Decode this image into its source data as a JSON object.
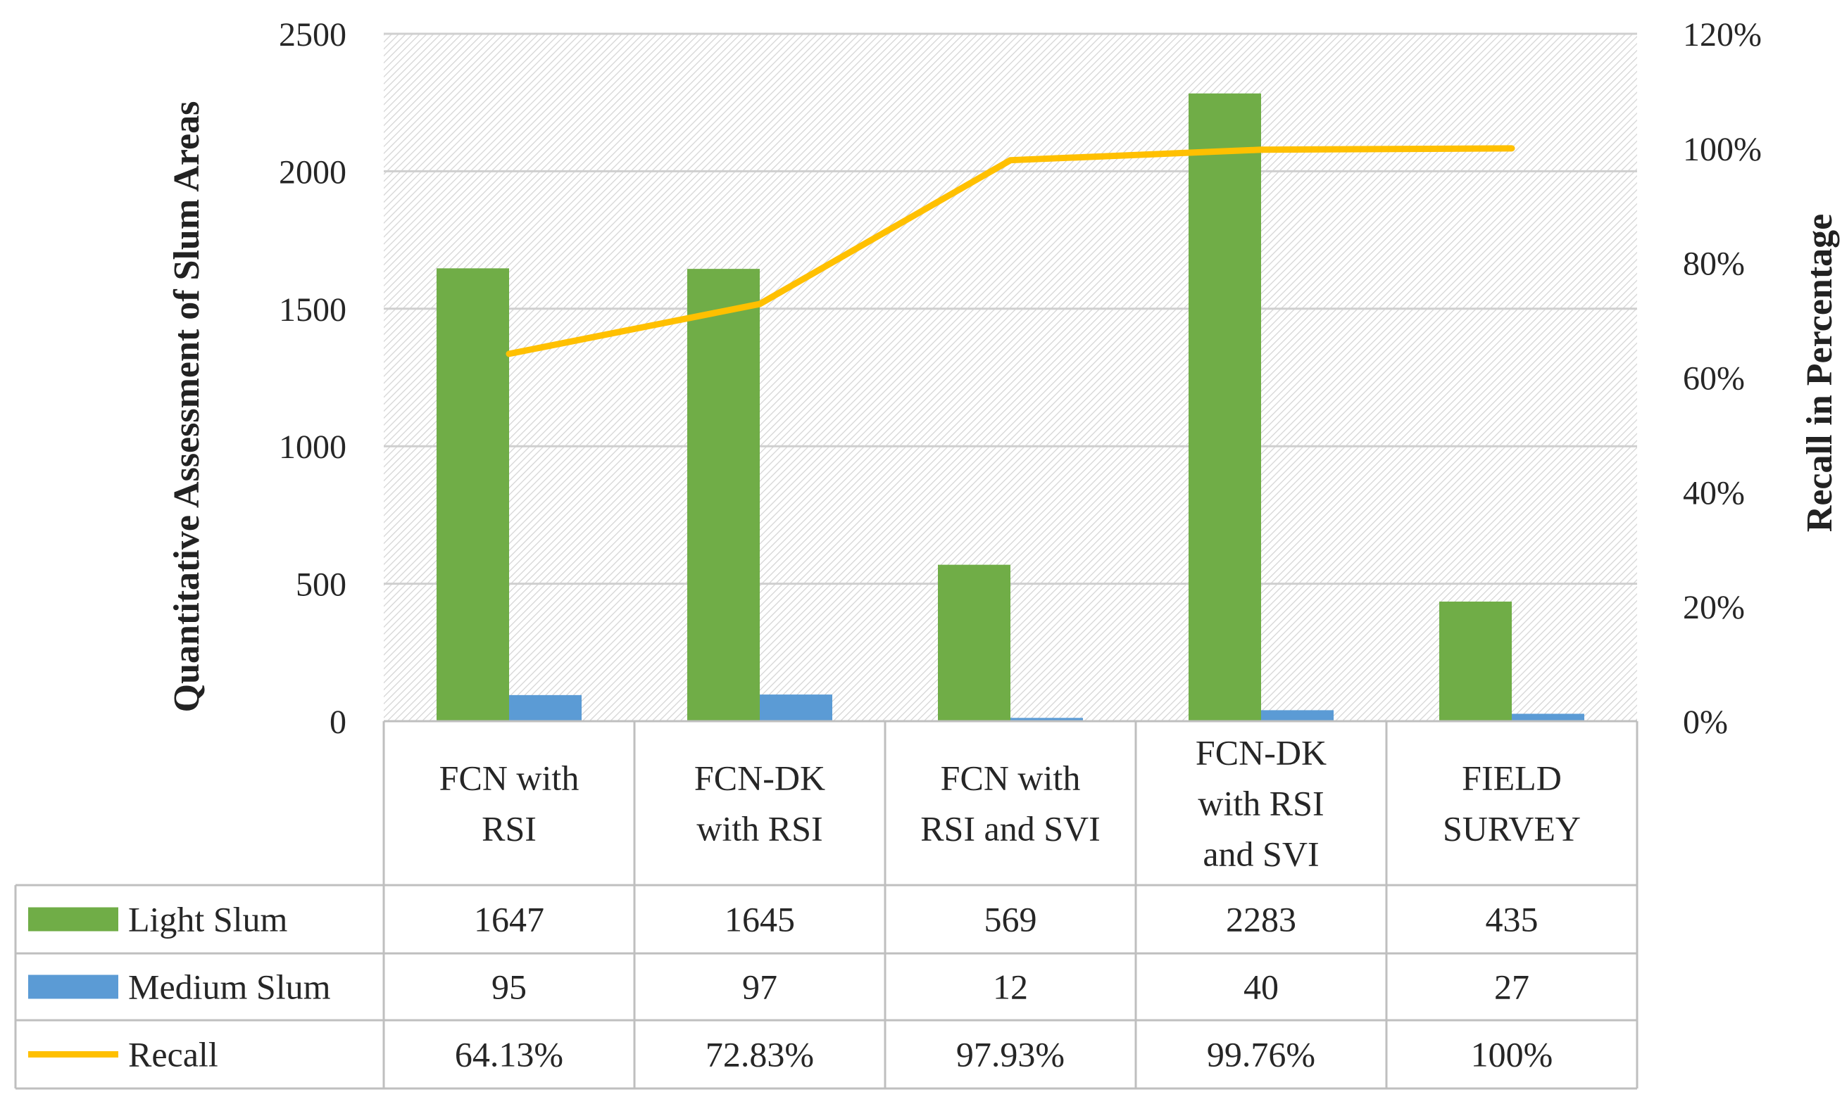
{
  "chart_data": {
    "type": "bar",
    "categories": [
      "FCN with RSI",
      "FCN-DK with RSI",
      "FCN with RSI and SVI",
      "FCN-DK with RSI and SVI",
      "FIELD SURVEY"
    ],
    "category_lines": [
      [
        "FCN with",
        "RSI"
      ],
      [
        "FCN-DK",
        "with RSI"
      ],
      [
        "FCN with",
        "RSI and SVI"
      ],
      [
        "FCN-DK",
        "with RSI",
        "and SVI"
      ],
      [
        "FIELD",
        "SURVEY"
      ]
    ],
    "series": [
      {
        "name": "Light Slum",
        "kind": "bar",
        "axis": "left",
        "color": "#70ad47",
        "values": [
          1647,
          1645,
          569,
          2283,
          435
        ],
        "labels": [
          "1647",
          "1645",
          "569",
          "2283",
          "435"
        ]
      },
      {
        "name": "Medium Slum",
        "kind": "bar",
        "axis": "left",
        "color": "#5b9bd5",
        "values": [
          95,
          97,
          12,
          40,
          27
        ],
        "labels": [
          "95",
          "97",
          "12",
          "40",
          "27"
        ]
      },
      {
        "name": "Recall",
        "kind": "line",
        "axis": "right",
        "color": "#ffc000",
        "values": [
          64.13,
          72.83,
          97.93,
          99.76,
          100
        ],
        "labels": [
          "64.13%",
          "72.83%",
          "97.93%",
          "99.76%",
          "100%"
        ]
      }
    ],
    "ylabel": "Quantitative Assessment of Slum Areas",
    "y2label": "Recall in Percentage",
    "ylim": [
      0,
      2500
    ],
    "yticks": [
      "0",
      "500",
      "1000",
      "1500",
      "2000",
      "2500"
    ],
    "y2lim": [
      0,
      120
    ],
    "y2ticks": [
      "0%",
      "20%",
      "40%",
      "60%",
      "80%",
      "100%",
      "120%"
    ],
    "grid": true,
    "legend": "data-table-below"
  }
}
